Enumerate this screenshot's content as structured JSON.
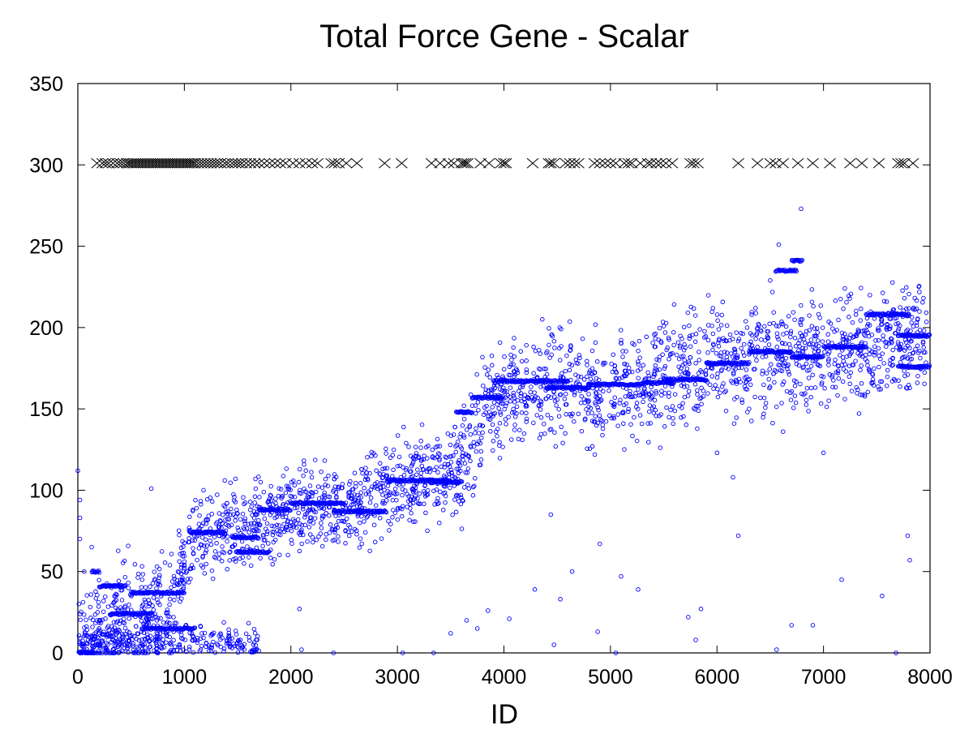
{
  "chart_data": {
    "type": "scatter",
    "title": "Total Force Gene - Scalar",
    "xlabel": "ID",
    "ylabel": "",
    "xlim": [
      0,
      8000
    ],
    "ylim": [
      0,
      350
    ],
    "xticks": [
      "0",
      "1000",
      "2000",
      "3000",
      "4000",
      "5000",
      "6000",
      "7000",
      "8000"
    ],
    "yticks": [
      "0",
      "50",
      "100",
      "150",
      "200",
      "250",
      "300",
      "350"
    ],
    "grid": false,
    "legend": "none",
    "colors": {
      "circles": "#0000ff",
      "crosses": "#000000"
    },
    "series": [
      {
        "marker": "circle",
        "trend": [
          [
            0,
            5
          ],
          [
            400,
            20
          ],
          [
            900,
            35
          ],
          [
            1100,
            72
          ],
          [
            1500,
            75
          ],
          [
            2000,
            88
          ],
          [
            2500,
            90
          ],
          [
            3000,
            105
          ],
          [
            3600,
            112
          ],
          [
            3800,
            150
          ],
          [
            4400,
            165
          ],
          [
            5000,
            162
          ],
          [
            6000,
            178
          ],
          [
            7000,
            185
          ],
          [
            8000,
            195
          ]
        ],
        "bands": [
          {
            "x": [
              0,
              130
            ],
            "y": 0
          },
          {
            "x": [
              130,
              200
            ],
            "y": 50
          },
          {
            "x": [
              200,
              450
            ],
            "y": 41
          },
          {
            "x": [
              300,
              700
            ],
            "y": 24
          },
          {
            "x": [
              500,
              1000
            ],
            "y": 37
          },
          {
            "x": [
              600,
              1100
            ],
            "y": 15
          },
          {
            "x": [
              1050,
              1380
            ],
            "y": 74
          },
          {
            "x": [
              1450,
              1700
            ],
            "y": 71
          },
          {
            "x": [
              1500,
              1800
            ],
            "y": 62
          },
          {
            "x": [
              1700,
              2000
            ],
            "y": 88
          },
          {
            "x": [
              2000,
              2500
            ],
            "y": 92
          },
          {
            "x": [
              2400,
              2700
            ],
            "y": 87
          },
          {
            "x": [
              2600,
              2900
            ],
            "y": 87
          },
          {
            "x": [
              2900,
              3500
            ],
            "y": 106
          },
          {
            "x": [
              3300,
              3600
            ],
            "y": 105
          },
          {
            "x": [
              3550,
              3700
            ],
            "y": 148
          },
          {
            "x": [
              3700,
              4000
            ],
            "y": 157
          },
          {
            "x": [
              3900,
              4200
            ],
            "y": 167
          },
          {
            "x": [
              4200,
              4600
            ],
            "y": 167
          },
          {
            "x": [
              4400,
              4800
            ],
            "y": 163
          },
          {
            "x": [
              4800,
              5300
            ],
            "y": 165
          },
          {
            "x": [
              5300,
              5600
            ],
            "y": 166
          },
          {
            "x": [
              5500,
              5900
            ],
            "y": 168
          },
          {
            "x": [
              5900,
              6300
            ],
            "y": 178
          },
          {
            "x": [
              6300,
              6700
            ],
            "y": 185
          },
          {
            "x": [
              6700,
              7000
            ],
            "y": 182
          },
          {
            "x": [
              7000,
              7400
            ],
            "y": 188
          },
          {
            "x": [
              7400,
              7800
            ],
            "y": 208
          },
          {
            "x": [
              7700,
              8000
            ],
            "y": 176
          },
          {
            "x": [
              7700,
              8000
            ],
            "y": 195
          },
          {
            "x": [
              6550,
              6750
            ],
            "y": 235
          },
          {
            "x": [
              6700,
              6800
            ],
            "y": 241
          }
        ],
        "outliers": [
          [
            0,
            112
          ],
          [
            20,
            94
          ],
          [
            20,
            83
          ],
          [
            20,
            70
          ],
          [
            10,
            30
          ],
          [
            60,
            50
          ],
          [
            130,
            65
          ],
          [
            690,
            101
          ],
          [
            1180,
            100
          ],
          [
            1480,
            107
          ],
          [
            2080,
            27
          ],
          [
            2100,
            2
          ],
          [
            2400,
            0
          ],
          [
            3050,
            0
          ],
          [
            3340,
            0
          ],
          [
            3500,
            12
          ],
          [
            3650,
            20
          ],
          [
            3750,
            15
          ],
          [
            3850,
            26
          ],
          [
            4050,
            21
          ],
          [
            4290,
            39
          ],
          [
            4360,
            205
          ],
          [
            4440,
            85
          ],
          [
            4470,
            5
          ],
          [
            4530,
            33
          ],
          [
            4640,
            50
          ],
          [
            4880,
            13
          ],
          [
            4900,
            67
          ],
          [
            5050,
            0
          ],
          [
            5100,
            47
          ],
          [
            5260,
            39
          ],
          [
            5730,
            22
          ],
          [
            5800,
            8
          ],
          [
            5850,
            27
          ],
          [
            6000,
            123
          ],
          [
            6150,
            108
          ],
          [
            6200,
            72
          ],
          [
            6500,
            229
          ],
          [
            6560,
            2
          ],
          [
            6580,
            251
          ],
          [
            6620,
            136
          ],
          [
            6700,
            17
          ],
          [
            6790,
            273
          ],
          [
            6900,
            17
          ],
          [
            7000,
            123
          ],
          [
            7170,
            45
          ],
          [
            7200,
            224
          ],
          [
            7550,
            35
          ],
          [
            7680,
            0
          ],
          [
            7790,
            72
          ],
          [
            7810,
            57
          ]
        ]
      },
      {
        "marker": "x",
        "y": 301,
        "x": [
          180,
          230,
          260,
          290,
          330,
          370,
          400,
          430,
          460,
          480,
          500,
          520,
          540,
          560,
          580,
          600,
          620,
          640,
          660,
          680,
          700,
          720,
          740,
          760,
          780,
          800,
          820,
          840,
          860,
          880,
          900,
          920,
          940,
          960,
          980,
          1000,
          1020,
          1040,
          1060,
          1080,
          1100,
          1130,
          1160,
          1190,
          1220,
          1250,
          1280,
          1310,
          1340,
          1380,
          1410,
          1450,
          1480,
          1510,
          1540,
          1580,
          1620,
          1660,
          1700,
          1750,
          1800,
          1850,
          1900,
          1950,
          2020,
          2080,
          2140,
          2200,
          2250,
          2380,
          2410,
          2450,
          2520,
          2620,
          2880,
          3040,
          3320,
          3400,
          3480,
          3530,
          3600,
          3620,
          3640,
          3660,
          3780,
          3860,
          3970,
          4000,
          4020,
          4270,
          4420,
          4440,
          4470,
          4580,
          4620,
          4660,
          4700,
          4850,
          4900,
          4950,
          5000,
          5050,
          5130,
          5170,
          5200,
          5280,
          5350,
          5380,
          5430,
          5470,
          5520,
          5580,
          5750,
          5780,
          5820,
          6200,
          6380,
          6500,
          6550,
          6620,
          6760,
          6900,
          7060,
          7250,
          7360,
          7520,
          7700,
          7730,
          7760,
          7840
        ]
      }
    ]
  }
}
